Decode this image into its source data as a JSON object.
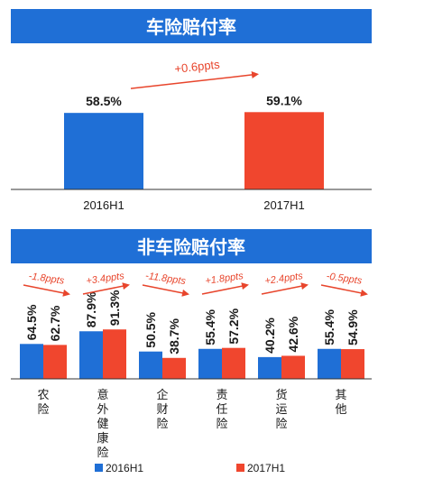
{
  "colors": {
    "banner": "#1f6fd6",
    "series_2016": "#1f6fd6",
    "series_2017": "#f0462e",
    "arrow": "#e8452c",
    "axis": "#333333",
    "text": "#1a1a1a"
  },
  "chart_data": [
    {
      "type": "bar",
      "title": "车险赔付率",
      "categories": [
        "2016H1",
        "2017H1"
      ],
      "values": [
        58.5,
        59.1
      ],
      "value_labels": [
        "58.5%",
        "59.1%"
      ],
      "annotations": [
        {
          "text": "+0.6ppts",
          "from": "2016H1",
          "to": "2017H1"
        }
      ],
      "ylim": [
        0,
        100
      ],
      "xlabel": "",
      "ylabel": "",
      "grid": false
    },
    {
      "type": "bar",
      "title": "非车险赔付率",
      "categories": [
        "农险",
        "意外健康险",
        "企财险",
        "责任险",
        "货运险",
        "其他"
      ],
      "series": [
        {
          "name": "2016H1",
          "values": [
            64.5,
            87.9,
            50.5,
            55.4,
            40.2,
            55.4
          ],
          "labels": [
            "64.5%",
            "87.9%",
            "50.5%",
            "55.4%",
            "40.2%",
            "55.4%"
          ]
        },
        {
          "name": "2017H1",
          "values": [
            62.7,
            91.3,
            38.7,
            57.2,
            42.6,
            54.9
          ],
          "labels": [
            "62.7%",
            "91.3%",
            "38.7%",
            "57.2%",
            "42.6%",
            "54.9%"
          ]
        }
      ],
      "changes": [
        "-1.8ppts",
        "+3.4ppts",
        "-11.8ppts",
        "+1.8ppts",
        "+2.4ppts",
        "-0.5ppts"
      ],
      "legend": {
        "position": "bottom",
        "entries": [
          "2016H1",
          "2017H1"
        ]
      },
      "ylim": [
        0,
        100
      ],
      "xlabel": "",
      "ylabel": "",
      "grid": false
    }
  ]
}
